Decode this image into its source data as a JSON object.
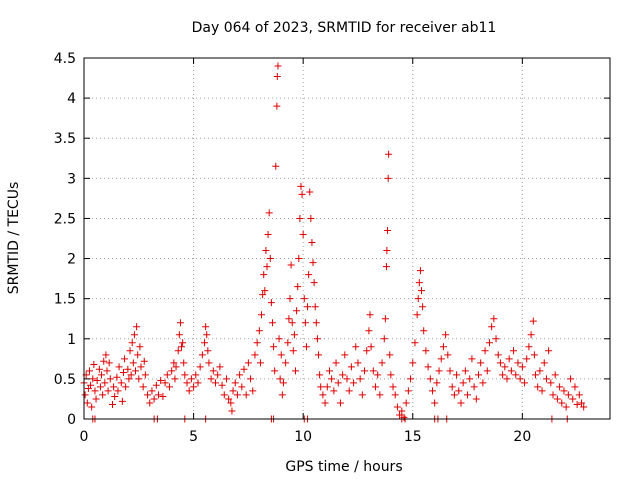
{
  "chart_data": {
    "type": "scatter",
    "title": "Day 064 of 2023, SRMTID for receiver ab11",
    "xlabel": "GPS time / hours",
    "ylabel": "SRMTID / TECUs",
    "xlim": [
      0,
      24
    ],
    "ylim": [
      0,
      4.5
    ],
    "xticks": [
      0,
      5,
      10,
      15,
      20
    ],
    "xtick_labels": [
      "0",
      "5",
      "10",
      "15",
      "20"
    ],
    "yticks": [
      0,
      0.5,
      1,
      1.5,
      2,
      2.5,
      3,
      3.5,
      4,
      4.5
    ],
    "ytick_labels": [
      "0",
      "0.5",
      "1",
      "1.5",
      "2",
      "2.5",
      "3",
      "3.5",
      "4",
      "4.5"
    ],
    "grid": true,
    "marker": "+",
    "color": "#e00000",
    "series": [
      {
        "name": "SRMTID",
        "points": [
          [
            0.0,
            0.45
          ],
          [
            0.05,
            0.3
          ],
          [
            0.1,
            0.55
          ],
          [
            0.15,
            0.2
          ],
          [
            0.2,
            0.38
          ],
          [
            0.25,
            0.6
          ],
          [
            0.3,
            0.42
          ],
          [
            0.35,
            0.15
          ],
          [
            0.4,
            0.5
          ],
          [
            0.45,
            0.68
          ],
          [
            0.5,
            0.35
          ],
          [
            0.55,
            0.25
          ],
          [
            0.6,
            0.48
          ],
          [
            0.7,
            0.62
          ],
          [
            0.75,
            0.4
          ],
          [
            0.8,
            0.55
          ],
          [
            0.85,
            0.3
          ],
          [
            0.9,
            0.72
          ],
          [
            0.95,
            0.45
          ],
          [
            1.0,
            0.8
          ],
          [
            1.05,
            0.6
          ],
          [
            1.1,
            0.35
          ],
          [
            1.15,
            0.7
          ],
          [
            1.2,
            0.5
          ],
          [
            1.3,
            0.18
          ],
          [
            1.35,
            0.4
          ],
          [
            1.4,
            0.28
          ],
          [
            1.5,
            0.52
          ],
          [
            1.55,
            0.35
          ],
          [
            1.6,
            0.65
          ],
          [
            1.7,
            0.45
          ],
          [
            1.75,
            0.22
          ],
          [
            1.8,
            0.58
          ],
          [
            1.85,
            0.75
          ],
          [
            1.9,
            0.4
          ],
          [
            2.0,
            0.62
          ],
          [
            2.05,
            0.5
          ],
          [
            2.1,
            0.85
          ],
          [
            2.15,
            0.55
          ],
          [
            2.2,
            0.95
          ],
          [
            2.25,
            0.7
          ],
          [
            2.3,
            1.05
          ],
          [
            2.35,
            0.6
          ],
          [
            2.4,
            1.15
          ],
          [
            2.45,
            0.8
          ],
          [
            2.5,
            0.5
          ],
          [
            2.55,
            0.9
          ],
          [
            2.6,
            0.65
          ],
          [
            2.7,
            0.4
          ],
          [
            2.75,
            0.72
          ],
          [
            2.8,
            0.55
          ],
          [
            2.9,
            0.3
          ],
          [
            3.0,
            0.2
          ],
          [
            3.1,
            0.35
          ],
          [
            3.2,
            0.25
          ],
          [
            3.3,
            0.42
          ],
          [
            3.4,
            0.3
          ],
          [
            3.5,
            0.48
          ],
          [
            3.6,
            0.28
          ],
          [
            3.7,
            0.45
          ],
          [
            3.8,
            0.55
          ],
          [
            3.9,
            0.4
          ],
          [
            4.0,
            0.6
          ],
          [
            4.1,
            0.7
          ],
          [
            4.15,
            0.5
          ],
          [
            4.2,
            0.65
          ],
          [
            4.3,
            0.85
          ],
          [
            4.35,
            1.05
          ],
          [
            4.4,
            1.2
          ],
          [
            4.45,
            0.9
          ],
          [
            4.5,
            0.95
          ],
          [
            4.55,
            0.7
          ],
          [
            4.6,
            0.55
          ],
          [
            4.7,
            0.45
          ],
          [
            4.8,
            0.35
          ],
          [
            4.9,
            0.5
          ],
          [
            5.0,
            0.4
          ],
          [
            5.1,
            0.55
          ],
          [
            5.2,
            0.45
          ],
          [
            5.3,
            0.65
          ],
          [
            5.4,
            0.8
          ],
          [
            5.5,
            0.95
          ],
          [
            5.55,
            1.15
          ],
          [
            5.6,
            1.05
          ],
          [
            5.65,
            0.85
          ],
          [
            5.7,
            0.7
          ],
          [
            5.8,
            0.5
          ],
          [
            5.9,
            0.6
          ],
          [
            6.0,
            0.45
          ],
          [
            6.1,
            0.55
          ],
          [
            6.2,
            0.65
          ],
          [
            6.3,
            0.42
          ],
          [
            6.4,
            0.3
          ],
          [
            6.5,
            0.5
          ],
          [
            6.6,
            0.25
          ],
          [
            6.7,
            0.2
          ],
          [
            6.75,
            0.1
          ],
          [
            6.8,
            0.35
          ],
          [
            6.9,
            0.45
          ],
          [
            7.0,
            0.3
          ],
          [
            7.1,
            0.55
          ],
          [
            7.2,
            0.4
          ],
          [
            7.3,
            0.62
          ],
          [
            7.4,
            0.3
          ],
          [
            7.5,
            0.7
          ],
          [
            7.6,
            0.5
          ],
          [
            7.7,
            0.35
          ],
          [
            7.8,
            0.8
          ],
          [
            7.9,
            0.95
          ],
          [
            8.0,
            1.1
          ],
          [
            8.05,
            0.7
          ],
          [
            8.1,
            1.3
          ],
          [
            8.15,
            1.55
          ],
          [
            8.2,
            1.8
          ],
          [
            8.25,
            1.6
          ],
          [
            8.3,
            2.1
          ],
          [
            8.35,
            1.9
          ],
          [
            8.4,
            2.3
          ],
          [
            8.45,
            2.57
          ],
          [
            8.5,
            2.0
          ],
          [
            8.55,
            1.45
          ],
          [
            8.6,
            1.2
          ],
          [
            8.65,
            0.9
          ],
          [
            8.7,
            0.6
          ],
          [
            8.75,
            3.15
          ],
          [
            8.8,
            3.9
          ],
          [
            8.82,
            4.27
          ],
          [
            8.85,
            4.4
          ],
          [
            8.9,
            1.0
          ],
          [
            8.95,
            0.5
          ],
          [
            9.0,
            0.8
          ],
          [
            9.05,
            0.3
          ],
          [
            9.1,
            0.45
          ],
          [
            9.2,
            0.7
          ],
          [
            9.3,
            0.95
          ],
          [
            9.35,
            1.25
          ],
          [
            9.4,
            1.5
          ],
          [
            9.45,
            1.92
          ],
          [
            9.5,
            1.2
          ],
          [
            9.55,
            0.85
          ],
          [
            9.6,
            1.05
          ],
          [
            9.65,
            0.6
          ],
          [
            9.7,
            1.35
          ],
          [
            9.75,
            1.65
          ],
          [
            9.8,
            2.0
          ],
          [
            9.85,
            2.5
          ],
          [
            9.9,
            2.9
          ],
          [
            9.95,
            2.8
          ],
          [
            10.0,
            2.3
          ],
          [
            10.05,
            1.5
          ],
          [
            10.1,
            1.2
          ],
          [
            10.15,
            0.9
          ],
          [
            10.2,
            1.4
          ],
          [
            10.25,
            1.8
          ],
          [
            10.3,
            2.83
          ],
          [
            10.35,
            2.5
          ],
          [
            10.4,
            2.2
          ],
          [
            10.45,
            1.95
          ],
          [
            10.5,
            1.7
          ],
          [
            10.55,
            1.4
          ],
          [
            10.6,
            1.2
          ],
          [
            10.65,
            1.0
          ],
          [
            10.7,
            0.8
          ],
          [
            10.75,
            0.55
          ],
          [
            10.8,
            0.4
          ],
          [
            10.9,
            0.3
          ],
          [
            11.0,
            0.2
          ],
          [
            11.1,
            0.4
          ],
          [
            11.2,
            0.6
          ],
          [
            11.3,
            0.5
          ],
          [
            11.4,
            0.35
          ],
          [
            11.5,
            0.7
          ],
          [
            11.6,
            0.45
          ],
          [
            11.7,
            0.2
          ],
          [
            11.8,
            0.55
          ],
          [
            11.9,
            0.8
          ],
          [
            12.0,
            0.5
          ],
          [
            12.1,
            0.35
          ],
          [
            12.2,
            0.65
          ],
          [
            12.3,
            0.45
          ],
          [
            12.4,
            0.9
          ],
          [
            12.5,
            0.7
          ],
          [
            12.6,
            0.5
          ],
          [
            12.7,
            0.3
          ],
          [
            12.8,
            0.6
          ],
          [
            12.9,
            0.85
          ],
          [
            13.0,
            1.1
          ],
          [
            13.05,
            1.3
          ],
          [
            13.1,
            0.9
          ],
          [
            13.2,
            0.6
          ],
          [
            13.3,
            0.4
          ],
          [
            13.4,
            0.55
          ],
          [
            13.5,
            0.3
          ],
          [
            13.6,
            0.7
          ],
          [
            13.7,
            1.0
          ],
          [
            13.75,
            1.25
          ],
          [
            13.8,
            1.9
          ],
          [
            13.82,
            2.1
          ],
          [
            13.85,
            2.35
          ],
          [
            13.88,
            3.0
          ],
          [
            13.9,
            3.3
          ],
          [
            13.95,
            0.8
          ],
          [
            14.0,
            0.55
          ],
          [
            14.1,
            0.4
          ],
          [
            14.2,
            0.3
          ],
          [
            14.3,
            0.15
          ],
          [
            14.4,
            0.05
          ],
          [
            14.5,
            0.1
          ],
          [
            14.6,
            0.02
          ],
          [
            14.7,
            0.2
          ],
          [
            14.8,
            0.35
          ],
          [
            14.9,
            0.5
          ],
          [
            15.0,
            0.7
          ],
          [
            15.1,
            0.95
          ],
          [
            15.2,
            1.3
          ],
          [
            15.25,
            1.5
          ],
          [
            15.3,
            1.7
          ],
          [
            15.35,
            1.85
          ],
          [
            15.4,
            1.6
          ],
          [
            15.45,
            1.4
          ],
          [
            15.5,
            1.1
          ],
          [
            15.6,
            0.85
          ],
          [
            15.7,
            0.65
          ],
          [
            15.8,
            0.5
          ],
          [
            15.9,
            0.35
          ],
          [
            16.0,
            0.2
          ],
          [
            16.1,
            0.45
          ],
          [
            16.2,
            0.6
          ],
          [
            16.3,
            0.75
          ],
          [
            16.4,
            0.9
          ],
          [
            16.5,
            1.05
          ],
          [
            16.6,
            0.8
          ],
          [
            16.7,
            0.6
          ],
          [
            16.8,
            0.4
          ],
          [
            16.9,
            0.3
          ],
          [
            17.0,
            0.55
          ],
          [
            17.1,
            0.35
          ],
          [
            17.2,
            0.2
          ],
          [
            17.3,
            0.45
          ],
          [
            17.4,
            0.6
          ],
          [
            17.5,
            0.3
          ],
          [
            17.6,
            0.5
          ],
          [
            17.7,
            0.75
          ],
          [
            17.8,
            0.4
          ],
          [
            17.9,
            0.25
          ],
          [
            18.0,
            0.55
          ],
          [
            18.1,
            0.7
          ],
          [
            18.2,
            0.45
          ],
          [
            18.3,
            0.85
          ],
          [
            18.4,
            0.6
          ],
          [
            18.5,
            0.95
          ],
          [
            18.6,
            1.15
          ],
          [
            18.7,
            1.25
          ],
          [
            18.8,
            1.0
          ],
          [
            18.9,
            0.8
          ],
          [
            19.0,
            0.7
          ],
          [
            19.1,
            0.55
          ],
          [
            19.2,
            0.65
          ],
          [
            19.3,
            0.5
          ],
          [
            19.4,
            0.75
          ],
          [
            19.5,
            0.6
          ],
          [
            19.6,
            0.85
          ],
          [
            19.7,
            0.55
          ],
          [
            19.8,
            0.7
          ],
          [
            19.9,
            0.5
          ],
          [
            20.0,
            0.65
          ],
          [
            20.1,
            0.45
          ],
          [
            20.2,
            0.75
          ],
          [
            20.3,
            0.9
          ],
          [
            20.4,
            1.05
          ],
          [
            20.5,
            1.22
          ],
          [
            20.55,
            0.8
          ],
          [
            20.6,
            0.55
          ],
          [
            20.7,
            0.4
          ],
          [
            20.8,
            0.6
          ],
          [
            20.9,
            0.35
          ],
          [
            21.0,
            0.7
          ],
          [
            21.1,
            0.5
          ],
          [
            21.2,
            0.85
          ],
          [
            21.3,
            0.45
          ],
          [
            21.4,
            0.3
          ],
          [
            21.5,
            0.55
          ],
          [
            21.6,
            0.25
          ],
          [
            21.7,
            0.4
          ],
          [
            21.8,
            0.2
          ],
          [
            21.9,
            0.35
          ],
          [
            22.0,
            0.15
          ],
          [
            22.1,
            0.3
          ],
          [
            22.2,
            0.5
          ],
          [
            22.3,
            0.25
          ],
          [
            22.4,
            0.4
          ],
          [
            22.5,
            0.18
          ],
          [
            22.6,
            0.3
          ],
          [
            22.7,
            0.2
          ],
          [
            22.8,
            0.15
          ],
          [
            0.4,
            0.0
          ],
          [
            0.5,
            0.0
          ],
          [
            3.2,
            0.0
          ],
          [
            3.35,
            0.0
          ],
          [
            4.6,
            0.0
          ],
          [
            5.55,
            0.0
          ],
          [
            8.55,
            0.0
          ],
          [
            8.65,
            0.0
          ],
          [
            10.05,
            0.0
          ],
          [
            10.2,
            0.0
          ],
          [
            14.5,
            0.0
          ],
          [
            14.65,
            0.0
          ],
          [
            16.0,
            0.0
          ],
          [
            16.15,
            0.0
          ],
          [
            16.55,
            0.0
          ],
          [
            21.35,
            0.0
          ],
          [
            22.05,
            0.0
          ]
        ]
      }
    ]
  }
}
